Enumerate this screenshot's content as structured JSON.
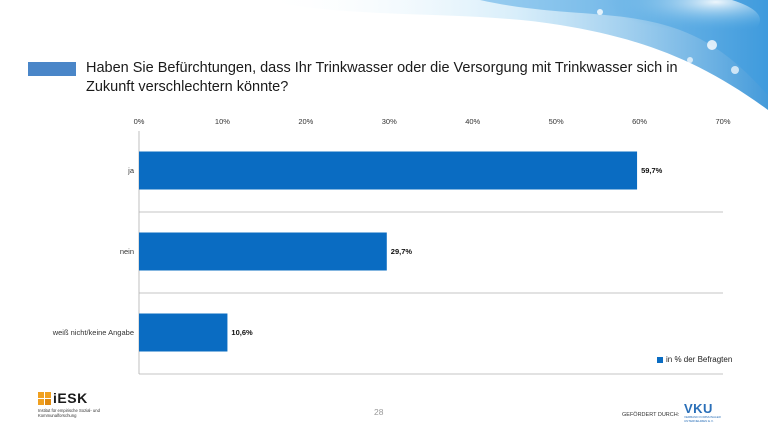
{
  "question": "Haben Sie Befürchtungen, dass Ihr Trinkwasser oder die Versorgung mit Trinkwasser sich in Zukunft verschlechtern könnte?",
  "colors": {
    "bar": "#0a6cc2",
    "title_bar": "#4a86c8"
  },
  "chart_data": {
    "type": "bar",
    "orientation": "horizontal",
    "categories": [
      "ja",
      "nein",
      "weiß nicht/keine Angabe"
    ],
    "series": [
      {
        "name": "in % der Befragten",
        "values": [
          59.7,
          29.7,
          10.6
        ]
      }
    ],
    "value_labels": [
      "59,7%",
      "29,7%",
      "10,6%"
    ],
    "xlim": [
      0,
      70
    ],
    "x_ticks": [
      "0%",
      "10%",
      "20%",
      "30%",
      "40%",
      "50%",
      "60%",
      "70%"
    ],
    "x_tick_position": "top",
    "grid": false,
    "legend_position": "bottom-right"
  },
  "legend": {
    "label": "in % der Befragten"
  },
  "footer": {
    "page_number": "28",
    "funded_by": "GEFÖRDERT DURCH:",
    "iesk_name": "iESK",
    "iesk_sub": "Institut für empirische Sozial- und Kommunalforschung",
    "vku_name": "VKU",
    "vku_sub": "VERBAND KOMMUNALER UNTERNEHMEN E.V."
  },
  "icons": {
    "water": "water-splash-icon",
    "iesk_logo": "iesk-logo-icon",
    "vku_logo": "vku-logo-icon"
  }
}
